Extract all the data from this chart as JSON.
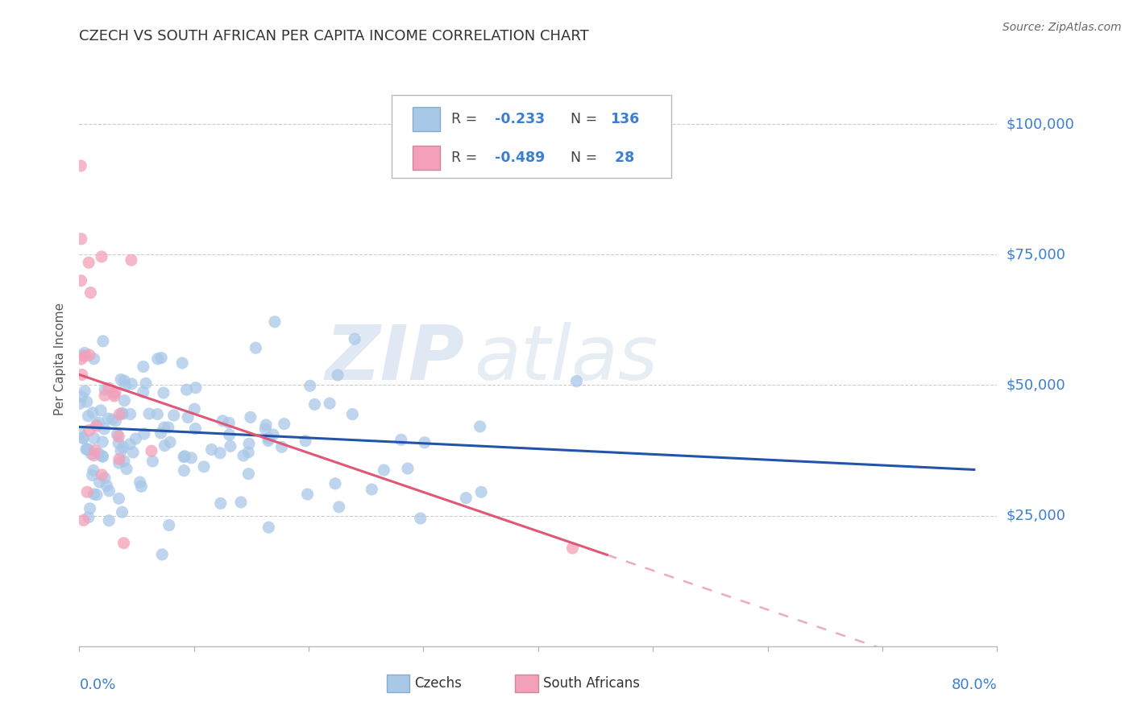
{
  "title": "CZECH VS SOUTH AFRICAN PER CAPITA INCOME CORRELATION CHART",
  "source": "Source: ZipAtlas.com",
  "ylabel": "Per Capita Income",
  "xlim": [
    0.0,
    0.8
  ],
  "ylim": [
    0,
    110000
  ],
  "r_czech": -0.233,
  "n_czech": 136,
  "r_sa": -0.489,
  "n_sa": 28,
  "color_czech": "#a8c8e8",
  "color_sa": "#f4a0b8",
  "color_trendline_czech": "#2255aa",
  "color_trendline_sa": "#e05878",
  "watermark_zip": "ZIP",
  "watermark_atlas": "atlas",
  "legend_label_czech": "Czechs",
  "legend_label_sa": "South Africans",
  "title_color": "#333333",
  "source_color": "#666666",
  "ytick_color": "#3b7fd4",
  "xtick_color": "#3b7fd4",
  "r_color": "#e05020",
  "n_color": "#3b7fd4",
  "grid_color": "#cccccc"
}
